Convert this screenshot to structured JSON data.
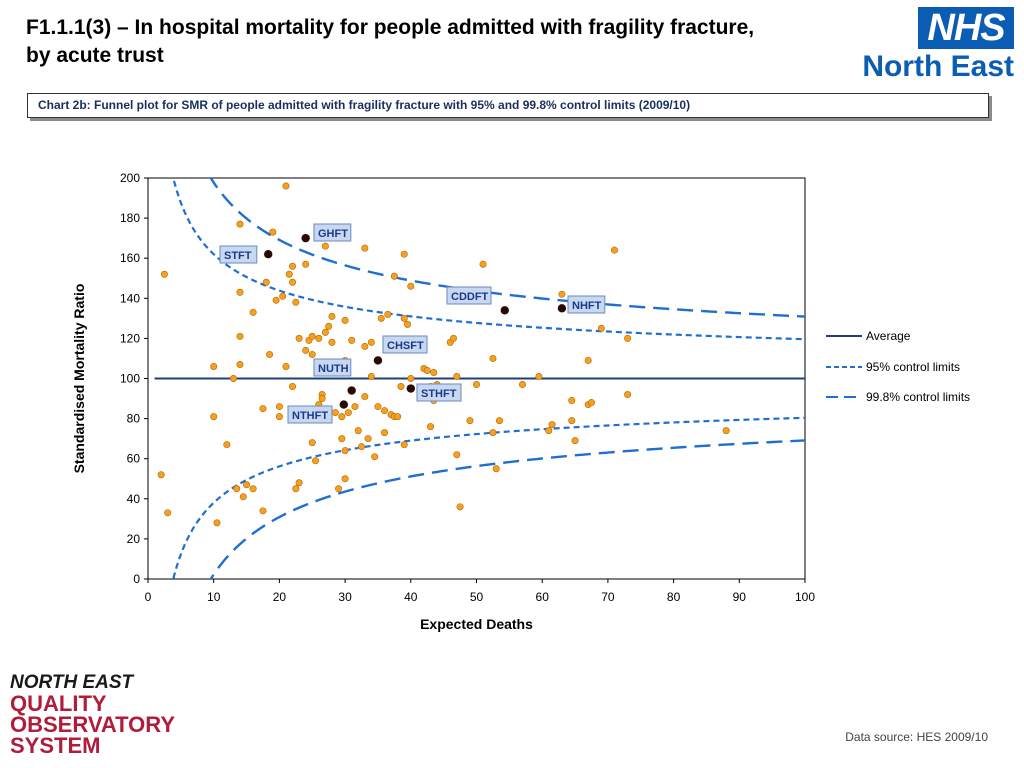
{
  "header": {
    "title_line1": "F1.1.1(3) – In hospital mortality for people admitted with fragility fracture,",
    "title_line2": "by acute trust"
  },
  "nhs_logo": {
    "badge": "NHS",
    "region": "North East",
    "color": "#0b5db4"
  },
  "caption": "Chart 2b: Funnel plot for SMR of people admitted with fragility fracture with 95% and 99.8% control limits (2009/10)",
  "footer": {
    "logo_lines": [
      "NORTH EAST",
      "QUALITY",
      "OBSERVATORY",
      "SYSTEM"
    ],
    "source": "Data source: HES 2009/10"
  },
  "chart_data": {
    "type": "scatter",
    "xlabel": "Expected Deaths",
    "ylabel": "Standardised Mortality Ratio",
    "xlim": [
      0,
      100
    ],
    "ylim": [
      0,
      200
    ],
    "xticks": [
      0,
      10,
      20,
      30,
      40,
      50,
      60,
      70,
      80,
      90,
      100
    ],
    "yticks": [
      0,
      20,
      40,
      60,
      80,
      100,
      120,
      140,
      160,
      180,
      200
    ],
    "grid": false,
    "legend_position": "right",
    "average": 100,
    "legend": [
      {
        "label": "Average",
        "style": "solid",
        "color": "#1f3f7a"
      },
      {
        "label": "95% control limits",
        "style": "short-dash",
        "color": "#1f6fd0"
      },
      {
        "label": "99.8% control limits",
        "style": "long-dash",
        "color": "#1f6fd0"
      }
    ],
    "colors": {
      "other_trusts": "#f5a020",
      "highlighted": "#2a0a00",
      "limits": "#1f6fd0",
      "average": "#1f3f7a"
    },
    "highlighted_trusts": [
      {
        "name": "GHFT",
        "x": 24,
        "y": 170
      },
      {
        "name": "STFT",
        "x": 18.3,
        "y": 162
      },
      {
        "name": "CDDFT",
        "x": 54.3,
        "y": 134
      },
      {
        "name": "NHFT",
        "x": 63,
        "y": 135
      },
      {
        "name": "CHSFT",
        "x": 35,
        "y": 109
      },
      {
        "name": "NUTH",
        "x": 31,
        "y": 94
      },
      {
        "name": "STHFT",
        "x": 40,
        "y": 95
      },
      {
        "name": "NTHFT",
        "x": 29.8,
        "y": 87
      }
    ],
    "other_trusts": [
      [
        2,
        52
      ],
      [
        2.5,
        152
      ],
      [
        3,
        33
      ],
      [
        10,
        106
      ],
      [
        10,
        81
      ],
      [
        10.5,
        28
      ],
      [
        12,
        67
      ],
      [
        13,
        100
      ],
      [
        13.5,
        45
      ],
      [
        14,
        177
      ],
      [
        14,
        143
      ],
      [
        14,
        121
      ],
      [
        14,
        107
      ],
      [
        14.5,
        41
      ],
      [
        15,
        47
      ],
      [
        16,
        45
      ],
      [
        16,
        133
      ],
      [
        17.5,
        34
      ],
      [
        17.5,
        85
      ],
      [
        18,
        148
      ],
      [
        18.5,
        112
      ],
      [
        19,
        173
      ],
      [
        19.5,
        139
      ],
      [
        20,
        86
      ],
      [
        20,
        81
      ],
      [
        20.5,
        141
      ],
      [
        21,
        196
      ],
      [
        21,
        106
      ],
      [
        21.5,
        152
      ],
      [
        22,
        148
      ],
      [
        22,
        156
      ],
      [
        22,
        96
      ],
      [
        22,
        83
      ],
      [
        22.5,
        45
      ],
      [
        22.5,
        138
      ],
      [
        23,
        120
      ],
      [
        23,
        48
      ],
      [
        24,
        157
      ],
      [
        24,
        114
      ],
      [
        24.5,
        119
      ],
      [
        25,
        68
      ],
      [
        25,
        121
      ],
      [
        25,
        112
      ],
      [
        25.5,
        59
      ],
      [
        26,
        120
      ],
      [
        26,
        87
      ],
      [
        26.5,
        92
      ],
      [
        26.5,
        90
      ],
      [
        27,
        166
      ],
      [
        27,
        123
      ],
      [
        27.5,
        126
      ],
      [
        28,
        131
      ],
      [
        28,
        118
      ],
      [
        28.5,
        83
      ],
      [
        29,
        45
      ],
      [
        29.5,
        81
      ],
      [
        29.5,
        70
      ],
      [
        30,
        129
      ],
      [
        30,
        109
      ],
      [
        30,
        64
      ],
      [
        30,
        50
      ],
      [
        30.5,
        83
      ],
      [
        31,
        119
      ],
      [
        31.5,
        86
      ],
      [
        32,
        74
      ],
      [
        32.5,
        66
      ],
      [
        33,
        116
      ],
      [
        33,
        165
      ],
      [
        33,
        91
      ],
      [
        33.5,
        70
      ],
      [
        34,
        118
      ],
      [
        34,
        101
      ],
      [
        34.5,
        61
      ],
      [
        35,
        86
      ],
      [
        35.5,
        130
      ],
      [
        36,
        84
      ],
      [
        36,
        73
      ],
      [
        36.5,
        132
      ],
      [
        37,
        82
      ],
      [
        37.5,
        81
      ],
      [
        37.5,
        151
      ],
      [
        38,
        81
      ],
      [
        38.5,
        96
      ],
      [
        39,
        162
      ],
      [
        39,
        130
      ],
      [
        39,
        67
      ],
      [
        39.5,
        127
      ],
      [
        40,
        146
      ],
      [
        40,
        100
      ],
      [
        42,
        105
      ],
      [
        42.5,
        104
      ],
      [
        43,
        96
      ],
      [
        43,
        76
      ],
      [
        43.5,
        103
      ],
      [
        43.5,
        89
      ],
      [
        44,
        97
      ],
      [
        46,
        118
      ],
      [
        46.5,
        120
      ],
      [
        47,
        101
      ],
      [
        47,
        62
      ],
      [
        47.5,
        36
      ],
      [
        49,
        79
      ],
      [
        50,
        97
      ],
      [
        51,
        157
      ],
      [
        52.5,
        73
      ],
      [
        52.5,
        110
      ],
      [
        53,
        55
      ],
      [
        53.5,
        79
      ],
      [
        57,
        97
      ],
      [
        59.5,
        101
      ],
      [
        61,
        74
      ],
      [
        61.5,
        77
      ],
      [
        63,
        142
      ],
      [
        64.5,
        89
      ],
      [
        64.5,
        79
      ],
      [
        65,
        69
      ],
      [
        67,
        109
      ],
      [
        67,
        87
      ],
      [
        67.5,
        88
      ],
      [
        69,
        125
      ],
      [
        71,
        164
      ],
      [
        73,
        120
      ],
      [
        73,
        92
      ],
      [
        88,
        74
      ]
    ]
  }
}
